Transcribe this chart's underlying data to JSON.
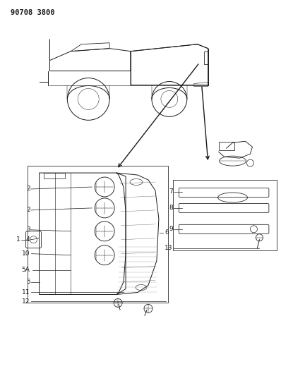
{
  "title": "90708 3800",
  "bg_color": "#ffffff",
  "line_color": "#1a1a1a",
  "title_fontsize": 7.5,
  "label_fontsize": 6.5,
  "fig_w": 3.98,
  "fig_h": 5.33,
  "dpi": 100
}
